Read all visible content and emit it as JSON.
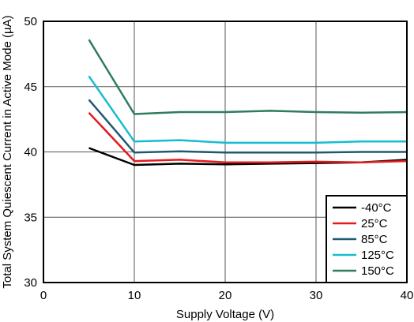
{
  "chart_data": {
    "type": "line",
    "xlabel": "Supply Voltage (V)",
    "ylabel": "Total System Quiescent Current in Active Mode (µA)",
    "xlim": [
      0,
      40
    ],
    "ylim": [
      30,
      50
    ],
    "x_ticks": [
      "0",
      "10",
      "20",
      "30",
      "40"
    ],
    "y_ticks": [
      "30",
      "35",
      "40",
      "45",
      "50"
    ],
    "grid": true,
    "legend_position": "bottom-right",
    "series": [
      {
        "name": "-40°C",
        "color": "#000000",
        "x": [
          5,
          10,
          15,
          20,
          25,
          30,
          35,
          40
        ],
        "y": [
          40.3,
          39.0,
          39.1,
          39.05,
          39.1,
          39.15,
          39.2,
          39.4
        ]
      },
      {
        "name": "25°C",
        "color": "#e41a1c",
        "x": [
          5,
          10,
          15,
          20,
          25,
          30,
          35,
          40
        ],
        "y": [
          43.0,
          39.3,
          39.4,
          39.2,
          39.2,
          39.25,
          39.2,
          39.3
        ]
      },
      {
        "name": "85°C",
        "color": "#1f5a73",
        "x": [
          5,
          10,
          15,
          20,
          25,
          30,
          35,
          40
        ],
        "y": [
          44.0,
          39.95,
          40.05,
          39.95,
          39.95,
          39.95,
          40.0,
          40.0
        ]
      },
      {
        "name": "125°C",
        "color": "#17bcd1",
        "x": [
          5,
          10,
          15,
          20,
          25,
          30,
          35,
          40
        ],
        "y": [
          45.8,
          40.8,
          40.9,
          40.7,
          40.7,
          40.7,
          40.8,
          40.8
        ]
      },
      {
        "name": "150°C",
        "color": "#2e7d5b",
        "x": [
          5,
          10,
          15,
          20,
          25,
          30,
          35,
          40
        ],
        "y": [
          48.6,
          42.9,
          43.05,
          43.05,
          43.15,
          43.05,
          43.0,
          43.05
        ]
      }
    ]
  }
}
